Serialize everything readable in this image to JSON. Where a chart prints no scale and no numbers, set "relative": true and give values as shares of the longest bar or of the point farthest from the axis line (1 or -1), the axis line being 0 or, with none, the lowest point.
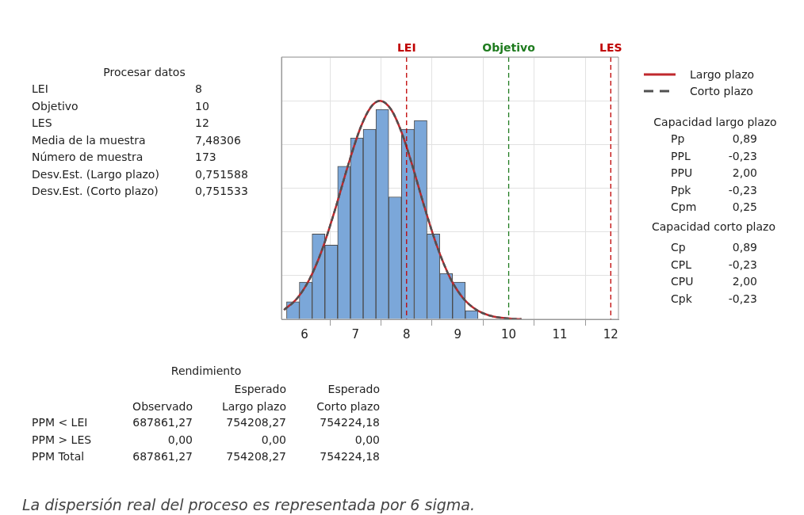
{
  "chart_data": {
    "type": "histogram",
    "relative": true,
    "bins": [
      5.65,
      5.9,
      6.15,
      6.4,
      6.65,
      6.9,
      7.15,
      7.4,
      7.65,
      7.9,
      8.15,
      8.4,
      8.65,
      8.9,
      9.15,
      9.4
    ],
    "values": [
      0.08,
      0.17,
      0.39,
      0.34,
      0.7,
      0.83,
      0.87,
      0.96,
      0.56,
      0.87,
      0.91,
      0.39,
      0.21,
      0.17,
      0.04
    ],
    "color": "#7ba7d9",
    "series": [
      {
        "type": "line",
        "name": "Largo plazo",
        "color": "#c0282d",
        "line_style": "solid",
        "x": [
          5.6,
          5.85,
          6.1,
          6.35,
          6.6,
          6.85,
          7.1,
          7.3,
          7.48,
          7.7,
          7.9,
          8.1,
          8.35,
          8.6,
          8.85,
          9.1,
          9.35,
          9.6,
          9.85,
          10.1,
          10.25
        ],
        "values": [
          0.043,
          0.094,
          0.184,
          0.321,
          0.502,
          0.701,
          0.878,
          0.971,
          1,
          0.959,
          0.857,
          0.714,
          0.514,
          0.332,
          0.191,
          0.099,
          0.046,
          0.019,
          0.007,
          0.002,
          0.001
        ]
      },
      {
        "type": "line",
        "name": "Corto plazo",
        "color": "#505050",
        "line_style": "dashed",
        "x": [
          5.6,
          5.85,
          6.1,
          6.35,
          6.6,
          6.85,
          7.1,
          7.3,
          7.48,
          7.7,
          7.9,
          8.1,
          8.35,
          8.6,
          8.85,
          9.1,
          9.35,
          9.6,
          9.85,
          10.1,
          10.25
        ],
        "values": [
          0.043,
          0.094,
          0.184,
          0.321,
          0.502,
          0.701,
          0.878,
          0.971,
          1,
          0.959,
          0.857,
          0.714,
          0.514,
          0.332,
          0.191,
          0.099,
          0.046,
          0.019,
          0.007,
          0.002,
          0.001
        ]
      }
    ],
    "xlim": [
      5.55,
      12.15
    ],
    "xticks": [
      6,
      7,
      8,
      9,
      10,
      11,
      12
    ],
    "grid": true,
    "legend": "top right",
    "marker": "none",
    "ref_lines": [
      {
        "axis": "x",
        "value": 8,
        "label": "LEI",
        "color": "#c00000",
        "line_style": "dashed"
      },
      {
        "axis": "x",
        "value": 10,
        "label": "Objetivo",
        "color": "#1e7b1e",
        "line_style": "dashed"
      },
      {
        "axis": "x",
        "value": 12,
        "label": "LES",
        "color": "#c00000",
        "line_style": "dashed"
      }
    ],
    "annotations": [
      "Procesar datos",
      "LEI",
      "8",
      "Objetivo",
      "10",
      "LES",
      "12",
      "Media de la muestra",
      "7,48306",
      "Número de muestra",
      "173",
      "Desv.Est. (Largo plazo)",
      "0,751588",
      "Desv.Est. (Corto plazo)",
      "0,751533",
      "Capacidad largo plazo",
      "Pp",
      "0,89",
      "PPL",
      "-0,23",
      "PPU",
      "2,00",
      "Ppk",
      "-0,23",
      "Cpm",
      "0,25",
      "Capacidad corto plazo",
      "Cp",
      "0,89",
      "CPL",
      "-0,23",
      "CPU",
      "2,00",
      "Cpk",
      "-0,23",
      "Rendimiento",
      "Esperado",
      "Esperado",
      "Observado",
      "Largo plazo",
      "Corto plazo",
      "PPM < LEI",
      "687861,27",
      "754208,27",
      "754224,18",
      "PPM > LES",
      "0,00",
      "0,00",
      "0,00",
      "PPM Total",
      "687861,27",
      "754208,27",
      "754224,18",
      "La dispersión real del proceso es representada por 6 sigma."
    ]
  }
}
